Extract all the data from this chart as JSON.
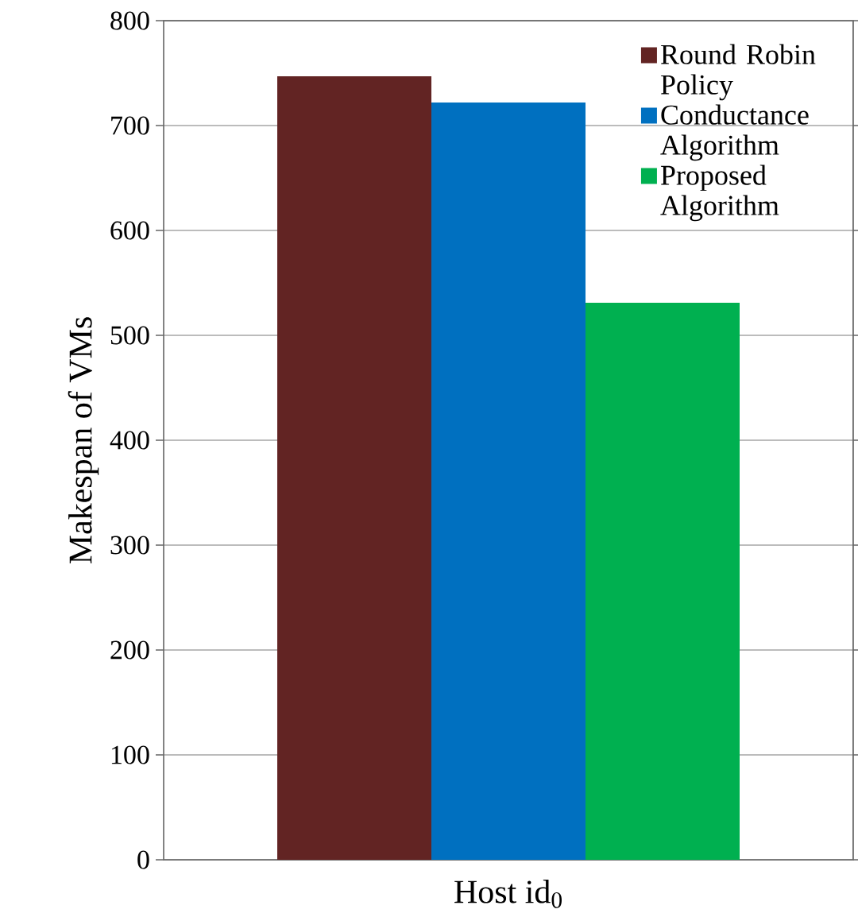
{
  "chart_data": {
    "type": "bar",
    "ylabel": "Makespan of VMs",
    "categories": [
      "Host id$_{0}$"
    ],
    "series": [
      {
        "name": "Round Robin Policy",
        "color": "#622423",
        "values": [
          747
        ]
      },
      {
        "name": "Conductance Algorithm",
        "color": "#0070c0",
        "values": [
          722
        ]
      },
      {
        "name": "Proposed Algorithm",
        "color": "#00b050",
        "values": [
          531
        ]
      }
    ],
    "ylim": [
      0,
      800
    ],
    "yticks": [
      0,
      100,
      200,
      300,
      400,
      500,
      600,
      700,
      800
    ],
    "grid": "y",
    "legend": "top right"
  }
}
